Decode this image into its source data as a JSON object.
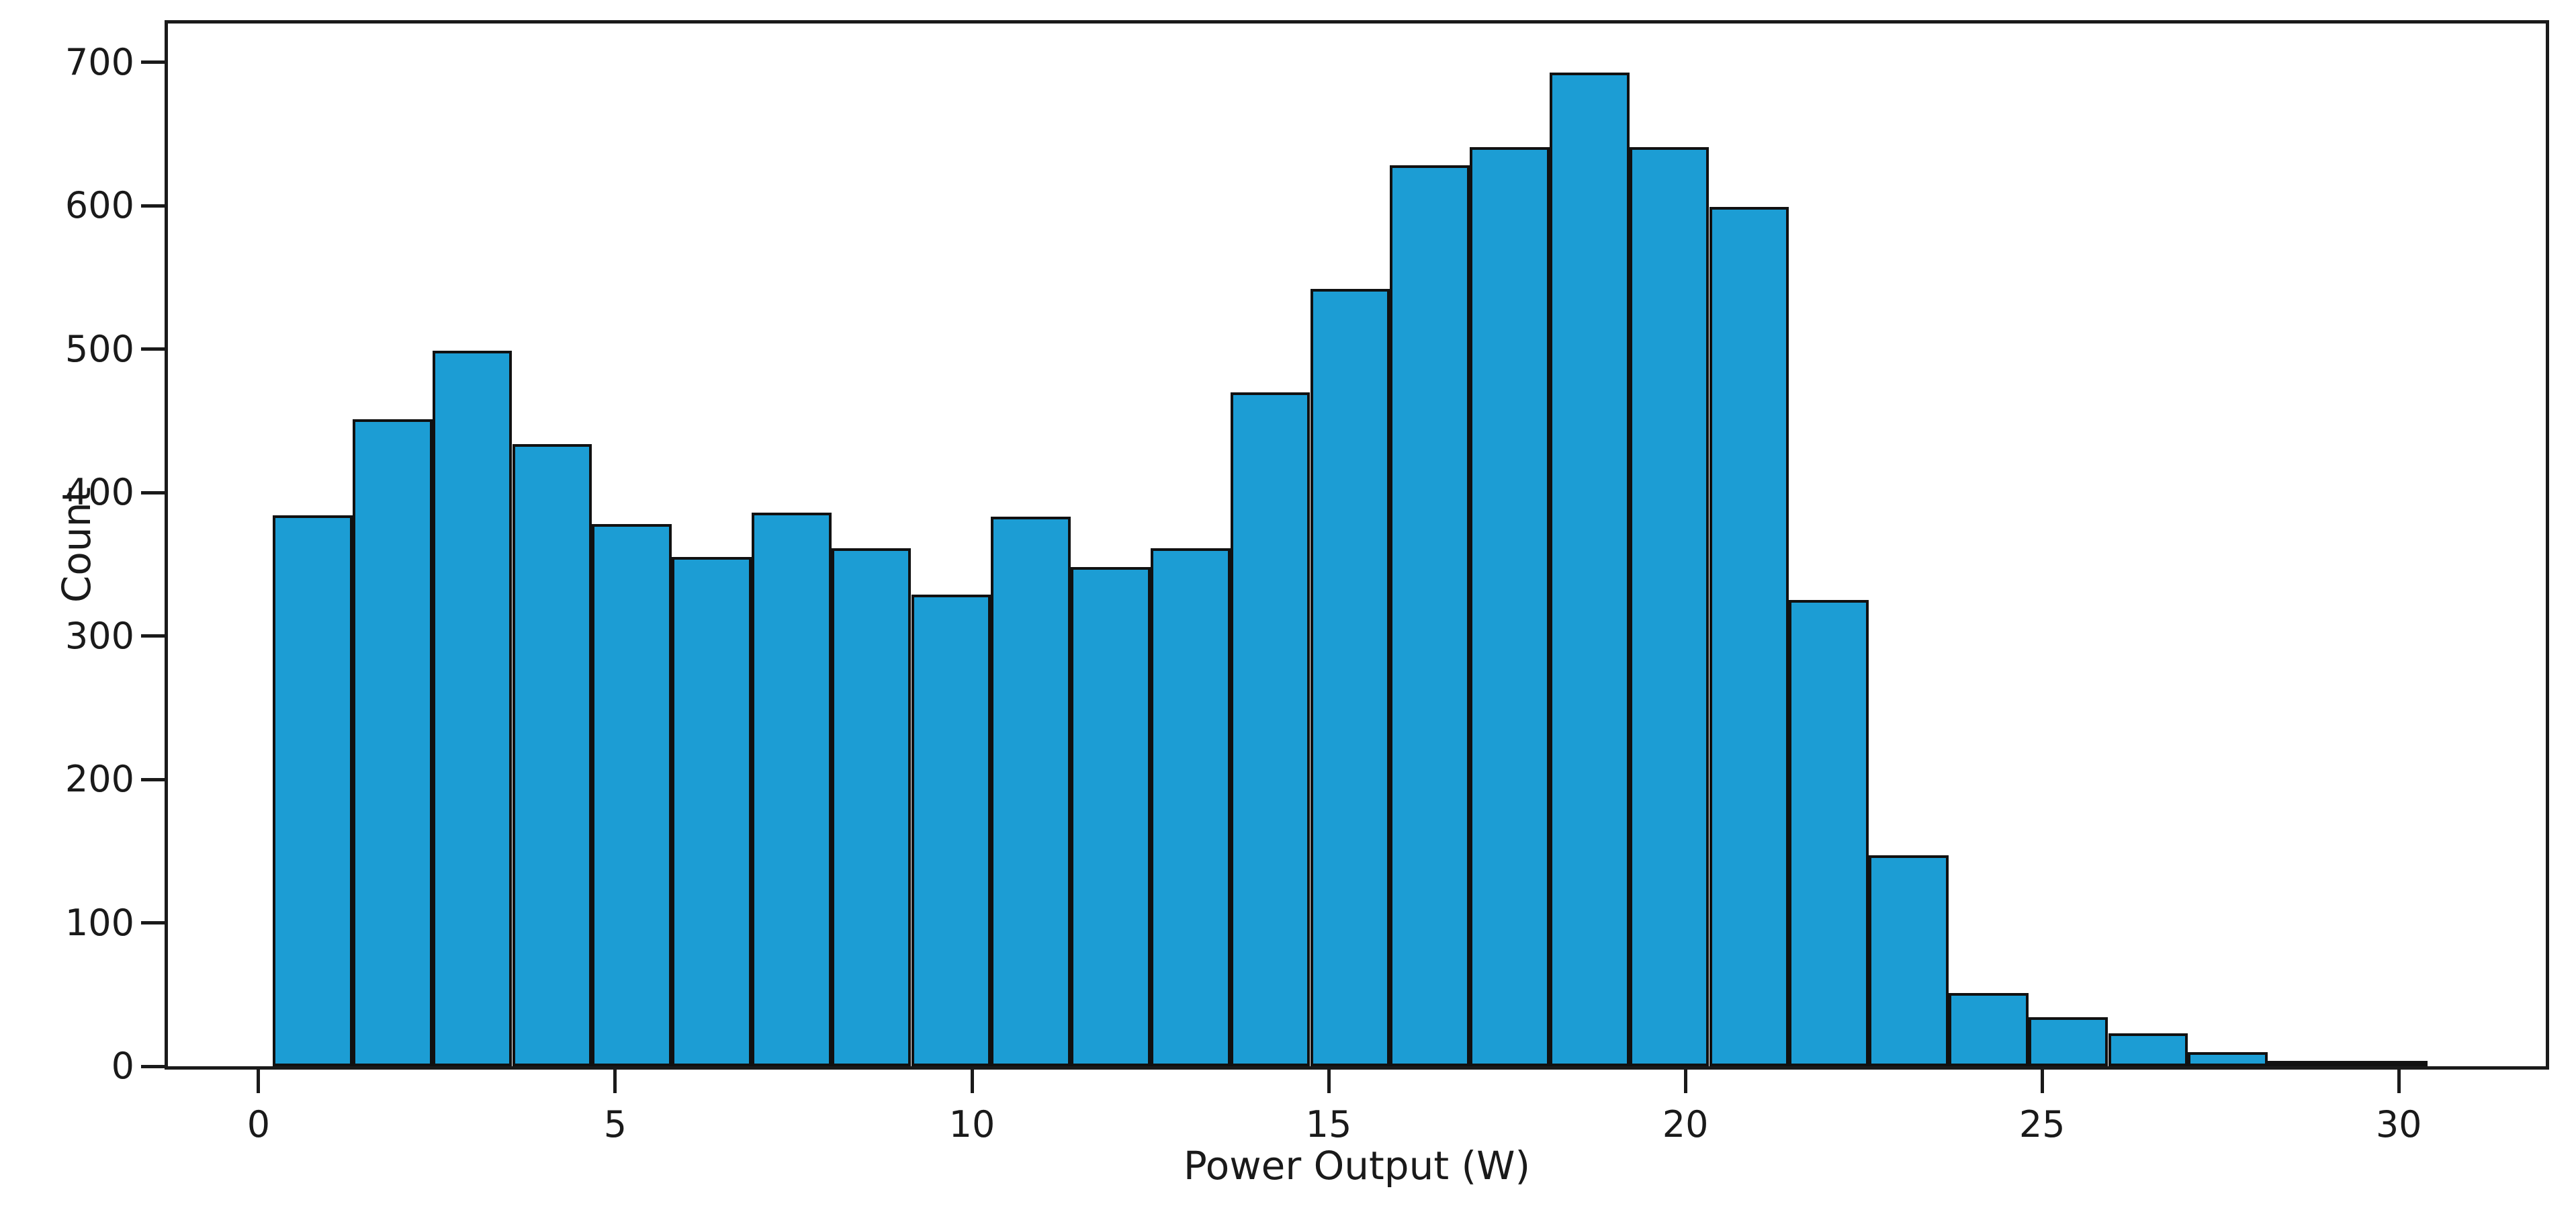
{
  "chart_data": {
    "type": "bar",
    "subtype": "histogram",
    "title": "",
    "xlabel": "Power Output (W)",
    "ylabel": "Count",
    "bin_start": 0.2,
    "bin_width": 1.1185,
    "values": [
      384,
      451,
      499,
      434,
      378,
      355,
      386,
      361,
      329,
      383,
      348,
      361,
      470,
      542,
      628,
      641,
      693,
      641,
      599,
      325,
      147,
      51,
      34,
      23,
      10,
      4,
      3
    ],
    "x_ticks": [
      0,
      5,
      10,
      15,
      20,
      25,
      30
    ],
    "y_ticks": [
      0,
      100,
      200,
      300,
      400,
      500,
      600,
      700
    ],
    "xlim": [
      -1.27,
      32.06
    ],
    "ylim": [
      0,
      727
    ],
    "grid": false,
    "legend_position": "none",
    "bar_color": "#1c9dd4",
    "bar_edge_color": "#111111",
    "axis_color": "#1a1a1a",
    "background_color": "#ffffff"
  }
}
